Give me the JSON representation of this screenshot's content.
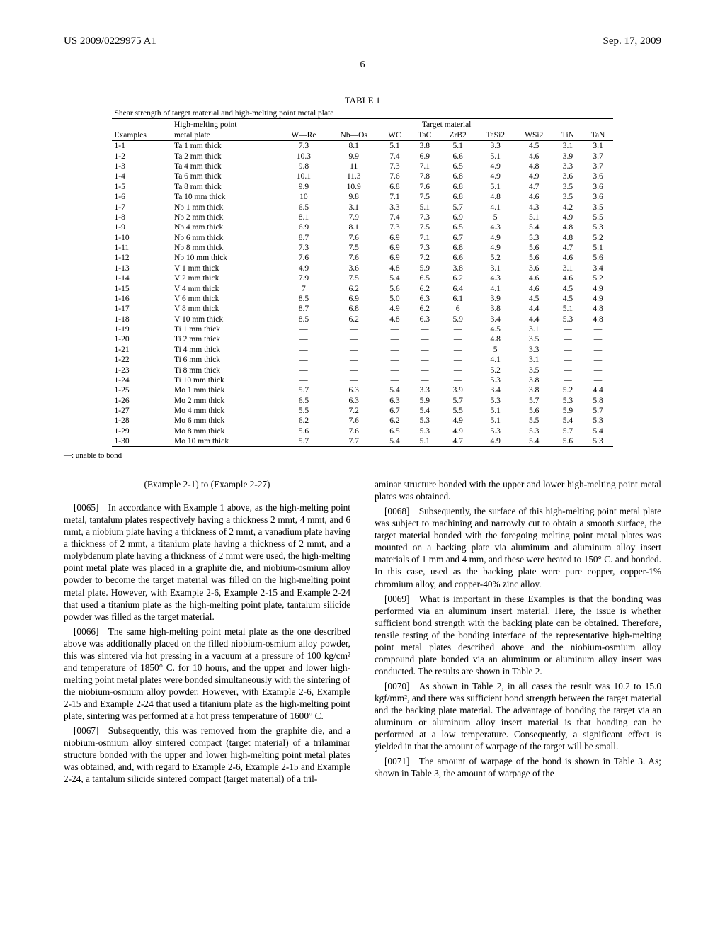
{
  "header": {
    "left": "US 2009/0229975 A1",
    "right": "Sep. 17, 2009",
    "pageNumber": "6"
  },
  "table": {
    "title": "TABLE 1",
    "caption": "Shear strength of target material and high-melting point metal plate",
    "colGroup1": "High-melting point",
    "colGroup1b": "metal plate",
    "colGroup2": "Target material",
    "exLabel": "Examples",
    "columns": [
      "W—Re",
      "Nb—Os",
      "WC",
      "TaC",
      "ZrB2",
      "TaSi2",
      "WSi2",
      "TiN",
      "TaN"
    ],
    "rows": [
      {
        "ex": "1-1",
        "plate": "Ta 1 mm thick",
        "vals": [
          "7.3",
          "8.1",
          "5.1",
          "3.8",
          "5.1",
          "3.3",
          "4.5",
          "3.1",
          "3.1"
        ]
      },
      {
        "ex": "1-2",
        "plate": "Ta 2 mm thick",
        "vals": [
          "10.3",
          "9.9",
          "7.4",
          "6.9",
          "6.6",
          "5.1",
          "4.6",
          "3.9",
          "3.7"
        ]
      },
      {
        "ex": "1-3",
        "plate": "Ta 4 mm thick",
        "vals": [
          "9.8",
          "11",
          "7.3",
          "7.1",
          "6.5",
          "4.9",
          "4.8",
          "3.3",
          "3.7"
        ]
      },
      {
        "ex": "1-4",
        "plate": "Ta 6 mm thick",
        "vals": [
          "10.1",
          "11.3",
          "7.6",
          "7.8",
          "6.8",
          "4.9",
          "4.9",
          "3.6",
          "3.6"
        ]
      },
      {
        "ex": "1-5",
        "plate": "Ta 8 mm thick",
        "vals": [
          "9.9",
          "10.9",
          "6.8",
          "7.6",
          "6.8",
          "5.1",
          "4.7",
          "3.5",
          "3.6"
        ]
      },
      {
        "ex": "1-6",
        "plate": "Ta 10 mm thick",
        "vals": [
          "10",
          "9.8",
          "7.1",
          "7.5",
          "6.8",
          "4.8",
          "4.6",
          "3.5",
          "3.6"
        ]
      },
      {
        "ex": "1-7",
        "plate": "Nb 1 mm thick",
        "vals": [
          "6.5",
          "3.1",
          "3.3",
          "5.1",
          "5.7",
          "4.1",
          "4.3",
          "4.2",
          "3.5"
        ]
      },
      {
        "ex": "1-8",
        "plate": "Nb 2 mm thick",
        "vals": [
          "8.1",
          "7.9",
          "7.4",
          "7.3",
          "6.9",
          "5",
          "5.1",
          "4.9",
          "5.5"
        ]
      },
      {
        "ex": "1-9",
        "plate": "Nb 4 mm thick",
        "vals": [
          "6.9",
          "8.1",
          "7.3",
          "7.5",
          "6.5",
          "4.3",
          "5.4",
          "4.8",
          "5.3"
        ]
      },
      {
        "ex": "1-10",
        "plate": "Nb 6 mm thick",
        "vals": [
          "8.7",
          "7.6",
          "6.9",
          "7.1",
          "6.7",
          "4.9",
          "5.3",
          "4.8",
          "5.2"
        ]
      },
      {
        "ex": "1-11",
        "plate": "Nb 8 mm thick",
        "vals": [
          "7.3",
          "7.5",
          "6.9",
          "7.3",
          "6.8",
          "4.9",
          "5.6",
          "4.7",
          "5.1"
        ]
      },
      {
        "ex": "1-12",
        "plate": "Nb 10 mm thick",
        "vals": [
          "7.6",
          "7.6",
          "6.9",
          "7.2",
          "6.6",
          "5.2",
          "5.6",
          "4.6",
          "5.6"
        ]
      },
      {
        "ex": "1-13",
        "plate": "V 1 mm thick",
        "vals": [
          "4.9",
          "3.6",
          "4.8",
          "5.9",
          "3.8",
          "3.1",
          "3.6",
          "3.1",
          "3.4"
        ]
      },
      {
        "ex": "1-14",
        "plate": "V 2 mm thick",
        "vals": [
          "7.9",
          "7.5",
          "5.4",
          "6.5",
          "6.2",
          "4.3",
          "4.6",
          "4.6",
          "5.2"
        ]
      },
      {
        "ex": "1-15",
        "plate": "V 4 mm thick",
        "vals": [
          "7",
          "6.2",
          "5.6",
          "6.2",
          "6.4",
          "4.1",
          "4.6",
          "4.5",
          "4.9"
        ]
      },
      {
        "ex": "1-16",
        "plate": "V 6 mm thick",
        "vals": [
          "8.5",
          "6.9",
          "5.0",
          "6.3",
          "6.1",
          "3.9",
          "4.5",
          "4.5",
          "4.9"
        ]
      },
      {
        "ex": "1-17",
        "plate": "V 8 mm thick",
        "vals": [
          "8.7",
          "6.8",
          "4.9",
          "6.2",
          "6",
          "3.8",
          "4.4",
          "5.1",
          "4.8"
        ]
      },
      {
        "ex": "1-18",
        "plate": "V 10 mm thick",
        "vals": [
          "8.5",
          "6.2",
          "4.8",
          "6.3",
          "5.9",
          "3.4",
          "4.4",
          "5.3",
          "4.8"
        ]
      },
      {
        "ex": "1-19",
        "plate": "Ti 1 mm thick",
        "vals": [
          "—",
          "—",
          "—",
          "—",
          "—",
          "4.5",
          "3.1",
          "—",
          "—"
        ]
      },
      {
        "ex": "1-20",
        "plate": "Ti 2 mm thick",
        "vals": [
          "—",
          "—",
          "—",
          "—",
          "—",
          "4.8",
          "3.5",
          "—",
          "—"
        ]
      },
      {
        "ex": "1-21",
        "plate": "Ti 4 mm thick",
        "vals": [
          "—",
          "—",
          "—",
          "—",
          "—",
          "5",
          "3.3",
          "—",
          "—"
        ]
      },
      {
        "ex": "1-22",
        "plate": "Ti 6 mm thick",
        "vals": [
          "—",
          "—",
          "—",
          "—",
          "—",
          "4.1",
          "3.1",
          "—",
          "—"
        ]
      },
      {
        "ex": "1-23",
        "plate": "Ti 8 mm thick",
        "vals": [
          "—",
          "—",
          "—",
          "—",
          "—",
          "5.2",
          "3.5",
          "—",
          "—"
        ]
      },
      {
        "ex": "1-24",
        "plate": "Ti 10 mm thick",
        "vals": [
          "—",
          "—",
          "—",
          "—",
          "—",
          "5.3",
          "3.8",
          "—",
          "—"
        ]
      },
      {
        "ex": "1-25",
        "plate": "Mo 1 mm thick",
        "vals": [
          "5.7",
          "6.3",
          "5.4",
          "3.3",
          "3.9",
          "3.4",
          "3.8",
          "5.2",
          "4.4"
        ]
      },
      {
        "ex": "1-26",
        "plate": "Mo 2 mm thick",
        "vals": [
          "6.5",
          "6.3",
          "6.3",
          "5.9",
          "5.7",
          "5.3",
          "5.7",
          "5.3",
          "5.8"
        ]
      },
      {
        "ex": "1-27",
        "plate": "Mo 4 mm thick",
        "vals": [
          "5.5",
          "7.2",
          "6.7",
          "5.4",
          "5.5",
          "5.1",
          "5.6",
          "5.9",
          "5.7"
        ]
      },
      {
        "ex": "1-28",
        "plate": "Mo 6 mm thick",
        "vals": [
          "6.2",
          "7.6",
          "6.2",
          "5.3",
          "4.9",
          "5.1",
          "5.5",
          "5.4",
          "5.3"
        ]
      },
      {
        "ex": "1-29",
        "plate": "Mo 8 mm thick",
        "vals": [
          "5.6",
          "7.6",
          "6.5",
          "5.3",
          "4.9",
          "5.3",
          "5.3",
          "5.7",
          "5.4"
        ]
      },
      {
        "ex": "1-30",
        "plate": "Mo 10 mm thick",
        "vals": [
          "5.7",
          "7.7",
          "5.4",
          "5.1",
          "4.7",
          "4.9",
          "5.4",
          "5.6",
          "5.3"
        ]
      }
    ],
    "note": "—: unable to bond"
  },
  "body": {
    "exTitle": "(Example 2-1) to (Example 2-27)",
    "p65": "[0065] In accordance with Example 1 above, as the high-melting point metal, tantalum plates respectively having a thickness 2 mmt, 4 mmt, and 6 mmt, a niobium plate having a thickness of 2 mmt, a vanadium plate having a thickness of 2 mmt, a titanium plate having a thickness of 2 mmt, and a molybdenum plate having a thickness of 2 mmt were used, the high-melting point metal plate was placed in a graphite die, and niobium-osmium alloy powder to become the target material was filled on the high-melting point metal plate. However, with Example 2-6, Example 2-15 and Example 2-24 that used a titanium plate as the high-melting point plate, tantalum silicide powder was filled as the target material.",
    "p66": "[0066] The same high-melting point metal plate as the one described above was additionally placed on the filled niobium-osmium alloy powder, this was sintered via hot pressing in a vacuum at a pressure of 100 kg/cm² and temperature of 1850° C. for 10 hours, and the upper and lower high-melting point metal plates were bonded simultaneously with the sintering of the niobium-osmium alloy powder. However, with Example 2-6, Example 2-15 and Example 2-24 that used a titanium plate as the high-melting point plate, sintering was performed at a hot press temperature of 1600° C.",
    "p67a": "[0067] Subsequently, this was removed from the graphite die, and a niobium-osmium alloy sintered compact (target material) of a trilaminar structure bonded with the upper and lower high-melting point metal plates was obtained, and, with regard to Example 2-6, Example 2-15 and Example 2-24, a tantalum silicide sintered compact (target material) of a tril-",
    "p67b": "aminar structure bonded with the upper and lower high-melting point metal plates was obtained.",
    "p68": "[0068] Subsequently, the surface of this high-melting point metal plate was subject to machining and narrowly cut to obtain a smooth surface, the target material bonded with the foregoing melting point metal plates was mounted on a backing plate via aluminum and aluminum alloy insert materials of 1 mm and 4 mm, and these were heated to 150° C. and bonded. In this case, used as the backing plate were pure copper, copper-1% chromium alloy, and copper-40% zinc alloy.",
    "p69": "[0069] What is important in these Examples is that the bonding was performed via an aluminum insert material. Here, the issue is whether sufficient bond strength with the backing plate can be obtained. Therefore, tensile testing of the bonding interface of the representative high-melting point metal plates described above and the niobium-osmium alloy compound plate bonded via an aluminum or aluminum alloy insert was conducted. The results are shown in Table 2.",
    "p70": "[0070] As shown in Table 2, in all cases the result was 10.2 to 15.0 kgf/mm², and there was sufficient bond strength between the target material and the backing plate material. The advantage of bonding the target via an aluminum or aluminum alloy insert material is that bonding can be performed at a low temperature. Consequently, a significant effect is yielded in that the amount of warpage of the target will be small.",
    "p71": "[0071] The amount of warpage of the bond is shown in Table 3. As; shown in Table 3, the amount of warpage of the"
  }
}
